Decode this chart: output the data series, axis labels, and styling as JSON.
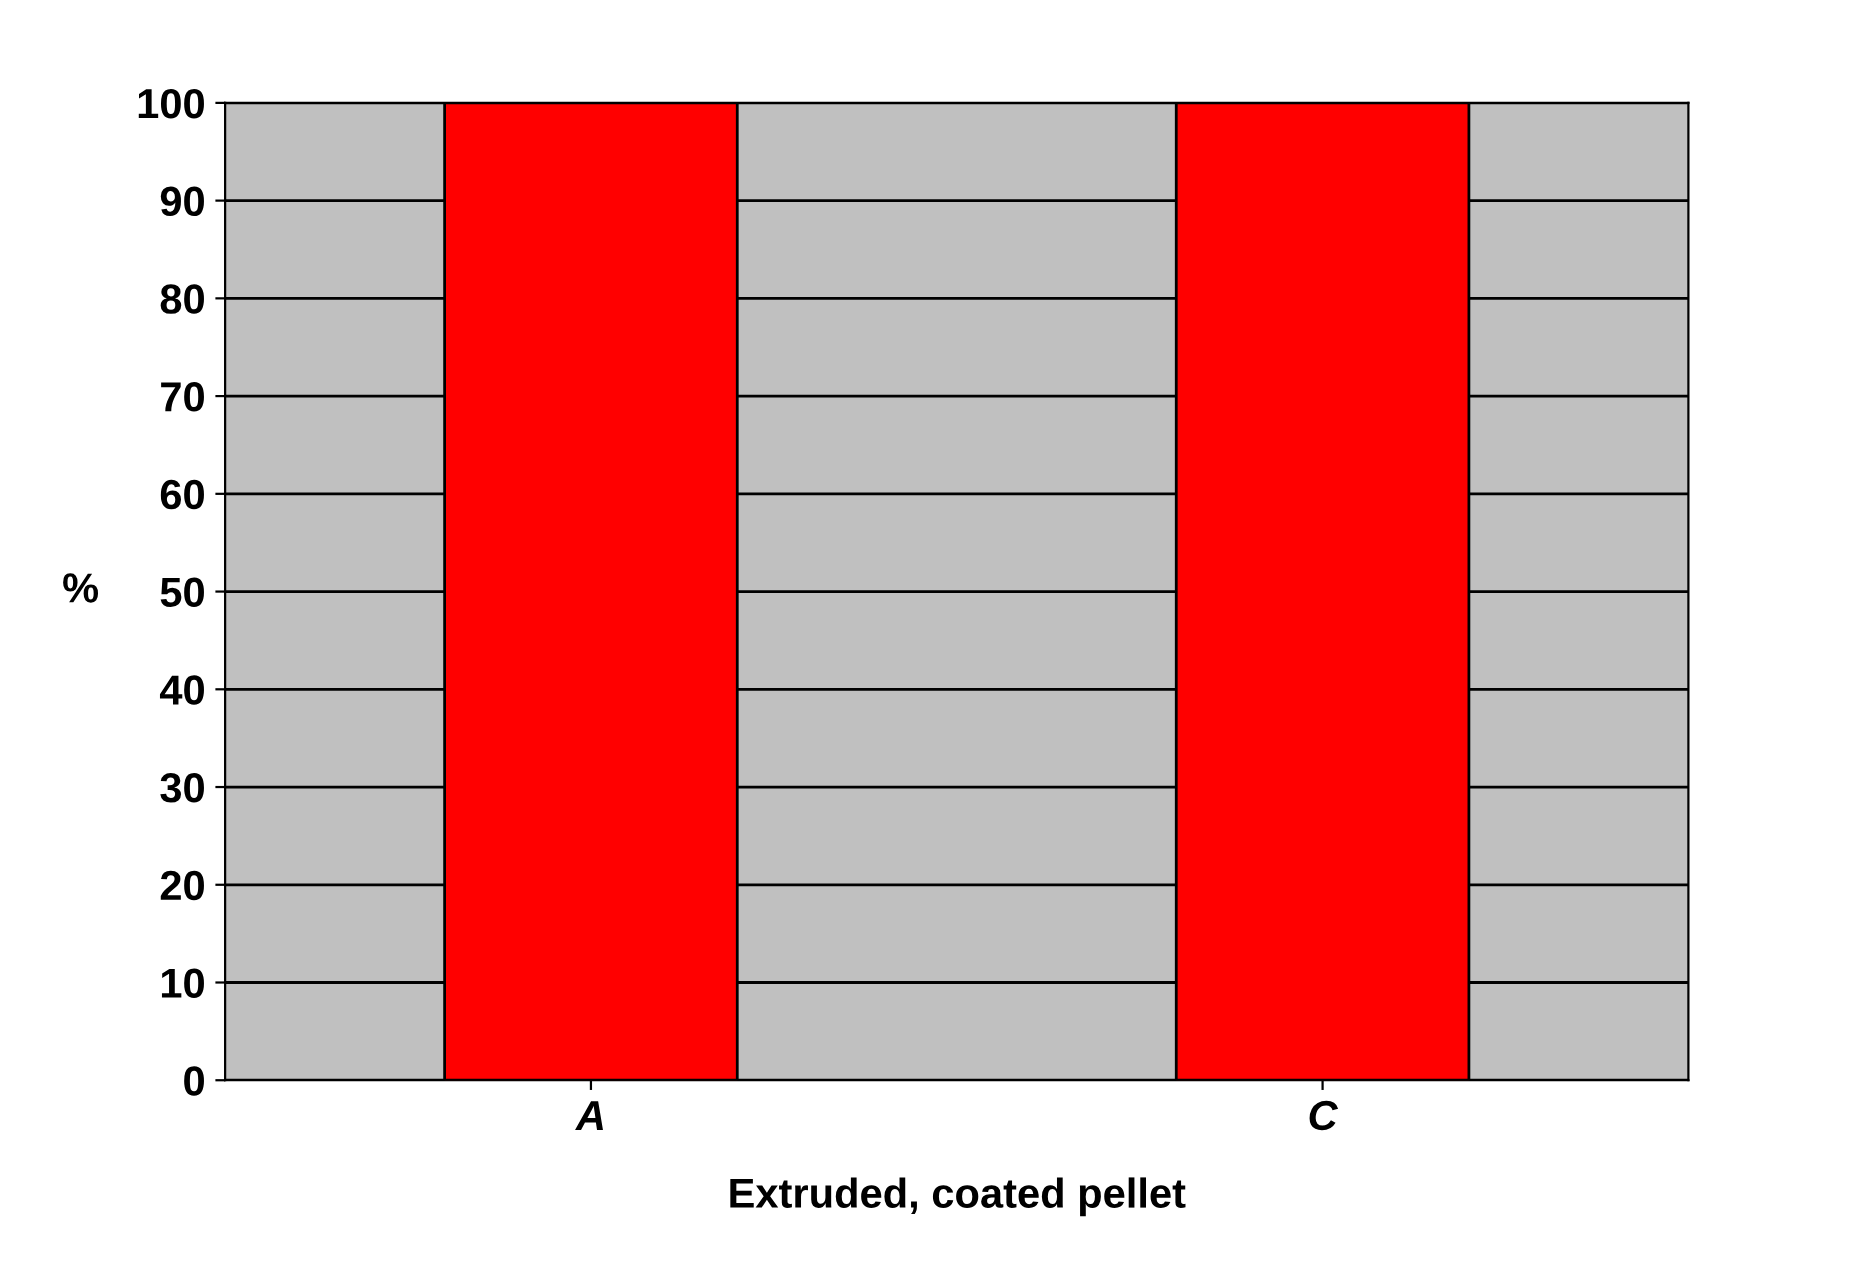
{
  "chart_data": {
    "type": "bar",
    "categories": [
      "A",
      "C"
    ],
    "values": [
      100,
      100
    ],
    "color": "#ff0000",
    "xlabel": "Extruded, coated pellet",
    "ylabel": "%",
    "ylim": [
      0,
      100
    ],
    "yticks": [
      0,
      10,
      20,
      30,
      40,
      50,
      60,
      70,
      80,
      90,
      100
    ],
    "grid": "y"
  }
}
